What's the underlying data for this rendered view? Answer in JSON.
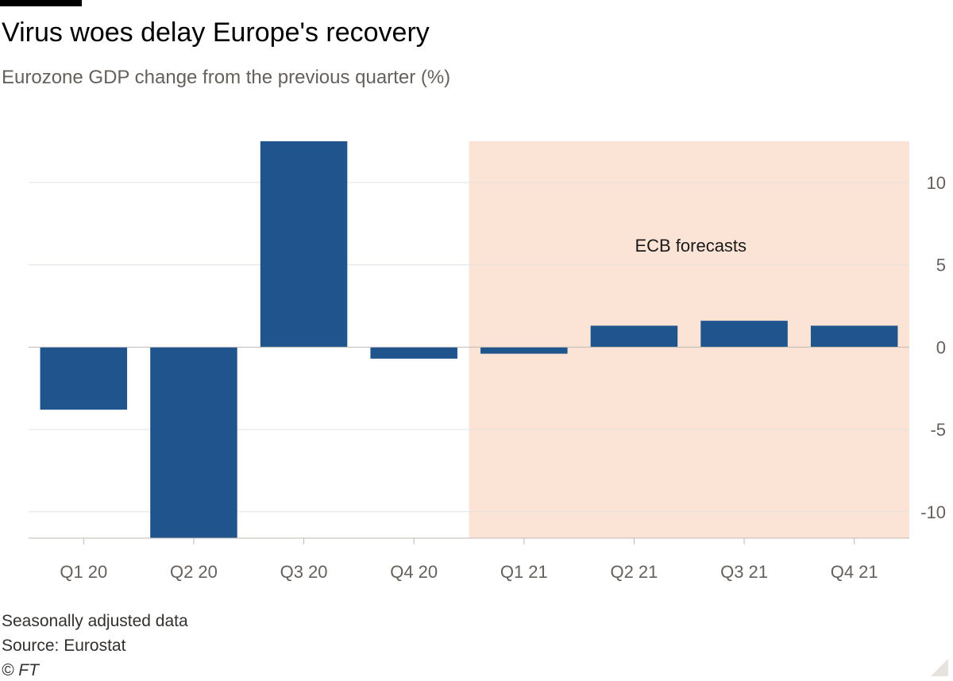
{
  "title": "Virus woes delay Europe's recovery",
  "subtitle": "Eurozone GDP change from the previous quarter (%)",
  "footer": {
    "note": "Seasonally adjusted data",
    "source": "Source: Eurostat",
    "copyright": "© FT"
  },
  "colors": {
    "bar": "#1f558c",
    "forecast_band": "#fbe4d5",
    "gridline": "#e6e2de",
    "zero_line": "#bfb9b4",
    "axis_text": "#66605c",
    "topbar": "#000000"
  },
  "chart_data": {
    "type": "bar",
    "title": "Virus woes delay Europe's recovery",
    "subtitle": "Eurozone GDP change from the previous quarter (%)",
    "categories": [
      "Q1 20",
      "Q2 20",
      "Q3 20",
      "Q4 20",
      "Q1 21",
      "Q2 21",
      "Q3 21",
      "Q4 21"
    ],
    "values": [
      -3.8,
      -11.8,
      12.5,
      -0.7,
      -0.4,
      1.3,
      1.6,
      1.3
    ],
    "xlabel": "",
    "ylabel": "",
    "ylim": [
      -11.6,
      12.5
    ],
    "yticks": [
      10,
      5,
      0,
      -5,
      -10
    ],
    "ytick_labels": [
      "10",
      "5",
      "0",
      "-5",
      "-10"
    ],
    "y_axis_side": "right",
    "grid": true,
    "forecast_region": {
      "label": "ECB forecasts",
      "from_category": "Q1 21",
      "to_category": "Q4 21"
    }
  }
}
